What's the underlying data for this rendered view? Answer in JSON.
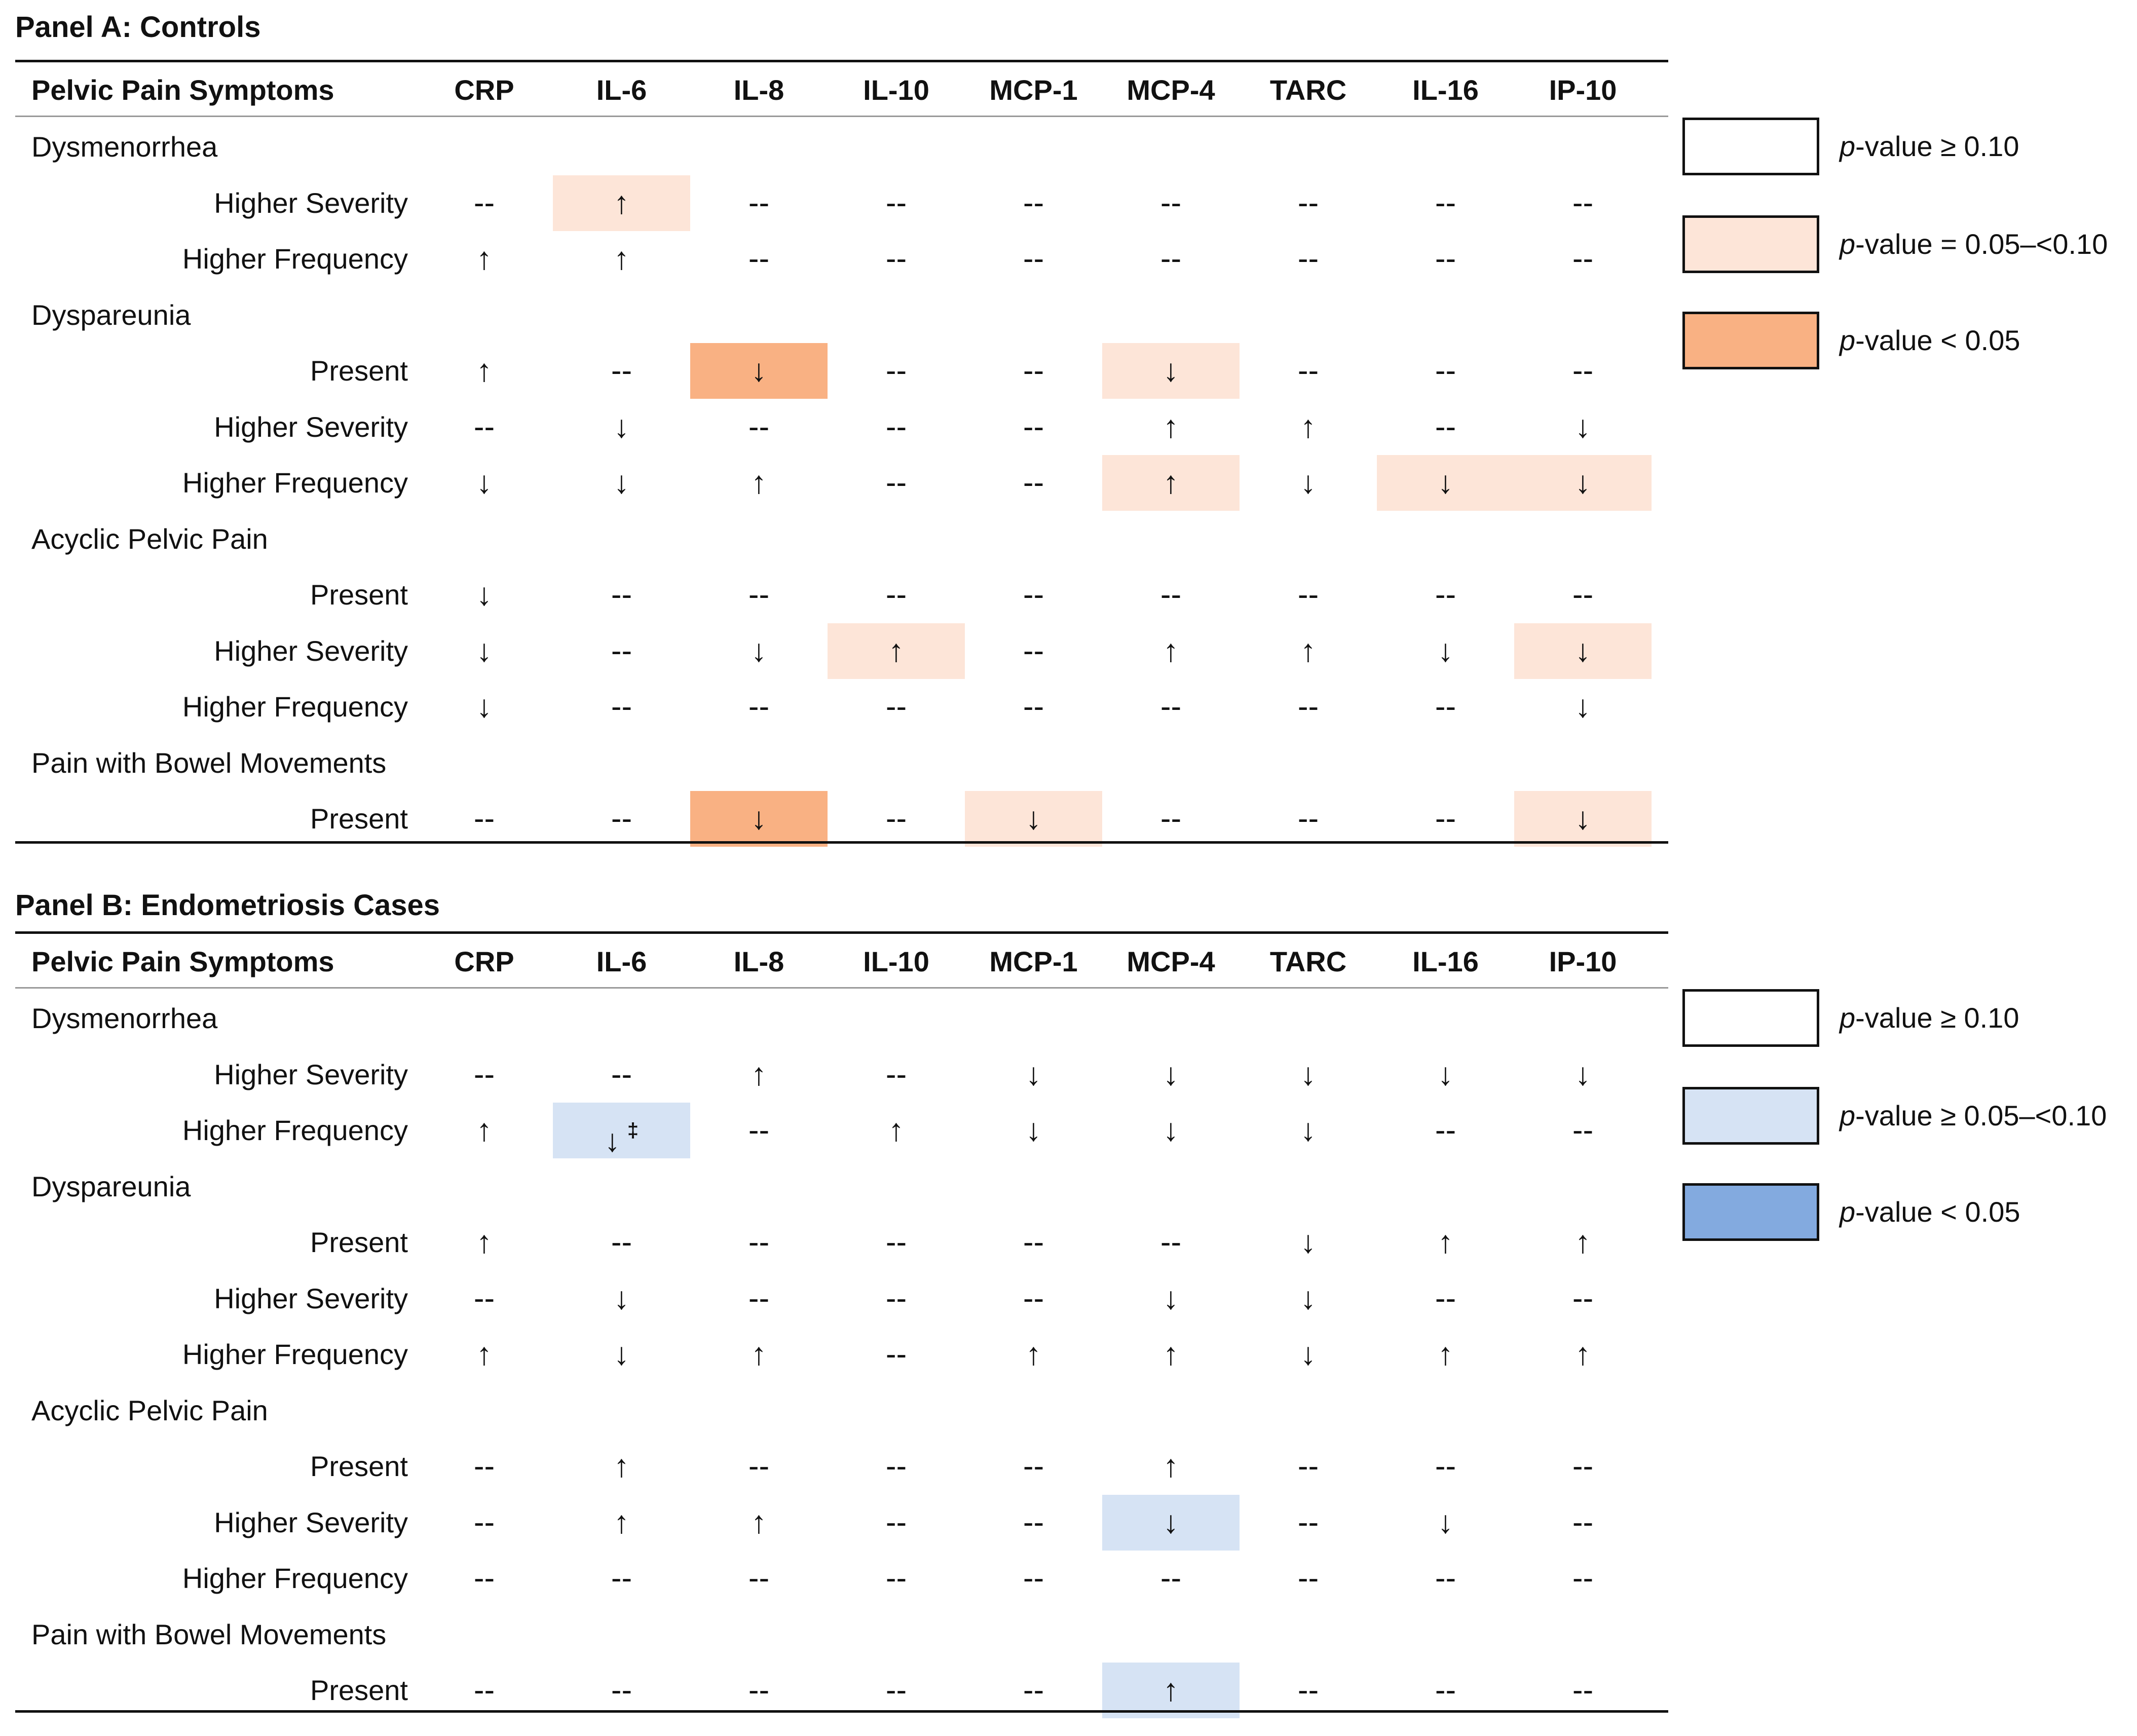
{
  "columns": [
    "Pelvic Pain Symptoms",
    "CRP",
    "IL-6",
    "IL-8",
    "IL-10",
    "MCP-1",
    "MCP-4",
    "TARC",
    "IL-16",
    "IP-10"
  ],
  "colors": {
    "none": "#ffffff",
    "light_orange": "#fde5d8",
    "dark_orange": "#f9b183",
    "light_blue": "#d6e3f4",
    "dark_blue": "#83aadf",
    "border": "#111111"
  },
  "panel_a": {
    "title": "Panel A: Controls",
    "rows": [
      {
        "label": "Dysmenorrhea",
        "group": true
      },
      {
        "label": "Higher Severity",
        "group": false,
        "cells": [
          {
            "v": "--"
          },
          {
            "v": "↑",
            "sig": "light"
          },
          {
            "v": "--"
          },
          {
            "v": "--"
          },
          {
            "v": "--"
          },
          {
            "v": "--"
          },
          {
            "v": "--"
          },
          {
            "v": "--"
          },
          {
            "v": "--"
          }
        ]
      },
      {
        "label": "Higher Frequency",
        "group": false,
        "cells": [
          {
            "v": "↑"
          },
          {
            "v": "↑"
          },
          {
            "v": "--"
          },
          {
            "v": "--"
          },
          {
            "v": "--"
          },
          {
            "v": "--"
          },
          {
            "v": "--"
          },
          {
            "v": "--"
          },
          {
            "v": "--"
          }
        ]
      },
      {
        "label": "Dyspareunia",
        "group": true
      },
      {
        "label": "Present",
        "group": false,
        "cells": [
          {
            "v": "↑"
          },
          {
            "v": "--"
          },
          {
            "v": "↓",
            "sig": "dark"
          },
          {
            "v": "--"
          },
          {
            "v": "--"
          },
          {
            "v": "↓",
            "sig": "light"
          },
          {
            "v": "--"
          },
          {
            "v": "--"
          },
          {
            "v": "--"
          }
        ]
      },
      {
        "label": "Higher Severity",
        "group": false,
        "cells": [
          {
            "v": "--"
          },
          {
            "v": "↓"
          },
          {
            "v": "--"
          },
          {
            "v": "--"
          },
          {
            "v": "--"
          },
          {
            "v": "↑"
          },
          {
            "v": "↑"
          },
          {
            "v": "--"
          },
          {
            "v": "↓"
          }
        ]
      },
      {
        "label": "Higher Frequency",
        "group": false,
        "cells": [
          {
            "v": "↓"
          },
          {
            "v": "↓"
          },
          {
            "v": "↑"
          },
          {
            "v": "--"
          },
          {
            "v": "--"
          },
          {
            "v": "↑",
            "sig": "light"
          },
          {
            "v": "↓"
          },
          {
            "v": "↓",
            "sig": "light"
          },
          {
            "v": "↓",
            "sig": "light"
          }
        ]
      },
      {
        "label": "Acyclic Pelvic Pain",
        "group": true
      },
      {
        "label": "Present",
        "group": false,
        "cells": [
          {
            "v": "↓"
          },
          {
            "v": "--"
          },
          {
            "v": "--"
          },
          {
            "v": "--"
          },
          {
            "v": "--"
          },
          {
            "v": "--"
          },
          {
            "v": "--"
          },
          {
            "v": "--"
          },
          {
            "v": "--"
          }
        ]
      },
      {
        "label": "Higher Severity",
        "group": false,
        "cells": [
          {
            "v": "↓"
          },
          {
            "v": "--"
          },
          {
            "v": "↓"
          },
          {
            "v": "↑",
            "sig": "light"
          },
          {
            "v": "--"
          },
          {
            "v": "↑"
          },
          {
            "v": "↑"
          },
          {
            "v": "↓"
          },
          {
            "v": "↓",
            "sig": "light"
          }
        ]
      },
      {
        "label": "Higher Frequency",
        "group": false,
        "cells": [
          {
            "v": "↓"
          },
          {
            "v": "--"
          },
          {
            "v": "--"
          },
          {
            "v": "--"
          },
          {
            "v": "--"
          },
          {
            "v": "--"
          },
          {
            "v": "--"
          },
          {
            "v": "--"
          },
          {
            "v": "↓"
          }
        ]
      },
      {
        "label": "Pain with Bowel Movements",
        "group": true
      },
      {
        "label": "Present",
        "group": false,
        "cells": [
          {
            "v": "--"
          },
          {
            "v": "--"
          },
          {
            "v": "↓",
            "sig": "dark"
          },
          {
            "v": "--"
          },
          {
            "v": "↓",
            "sig": "light"
          },
          {
            "v": "--"
          },
          {
            "v": "--"
          },
          {
            "v": "--"
          },
          {
            "v": "↓",
            "sig": "light"
          }
        ]
      }
    ],
    "legend": [
      {
        "prefix": "p",
        "text": "-value ≥ 0.10",
        "level": "none"
      },
      {
        "prefix": "p",
        "text": "-value = 0.05–<0.10",
        "level": "light"
      },
      {
        "prefix": "p",
        "text": "-value < 0.05",
        "level": "dark"
      }
    ]
  },
  "panel_b": {
    "title": "Panel B: Endometriosis Cases",
    "rows": [
      {
        "label": "Dysmenorrhea",
        "group": true
      },
      {
        "label": "Higher Severity",
        "group": false,
        "cells": [
          {
            "v": "--"
          },
          {
            "v": "--"
          },
          {
            "v": "↑"
          },
          {
            "v": "--"
          },
          {
            "v": "↓"
          },
          {
            "v": "↓"
          },
          {
            "v": "↓"
          },
          {
            "v": "↓"
          },
          {
            "v": "↓"
          }
        ]
      },
      {
        "label": "Higher Frequency",
        "group": false,
        "cells": [
          {
            "v": "↑"
          },
          {
            "v": "↓",
            "sig": "light",
            "mark": "‡"
          },
          {
            "v": "--"
          },
          {
            "v": "↑"
          },
          {
            "v": "↓"
          },
          {
            "v": "↓"
          },
          {
            "v": "↓"
          },
          {
            "v": "--"
          },
          {
            "v": "--"
          }
        ]
      },
      {
        "label": "Dyspareunia",
        "group": true
      },
      {
        "label": "Present",
        "group": false,
        "cells": [
          {
            "v": "↑"
          },
          {
            "v": "--"
          },
          {
            "v": "--"
          },
          {
            "v": "--"
          },
          {
            "v": "--"
          },
          {
            "v": "--"
          },
          {
            "v": "↓"
          },
          {
            "v": "↑"
          },
          {
            "v": "↑"
          }
        ]
      },
      {
        "label": "Higher Severity",
        "group": false,
        "cells": [
          {
            "v": "--"
          },
          {
            "v": "↓"
          },
          {
            "v": "--"
          },
          {
            "v": "--"
          },
          {
            "v": "--"
          },
          {
            "v": "↓"
          },
          {
            "v": "↓"
          },
          {
            "v": "--"
          },
          {
            "v": "--"
          }
        ]
      },
      {
        "label": "Higher Frequency",
        "group": false,
        "cells": [
          {
            "v": "↑"
          },
          {
            "v": "↓"
          },
          {
            "v": "↑"
          },
          {
            "v": "--"
          },
          {
            "v": "↑"
          },
          {
            "v": "↑"
          },
          {
            "v": "↓"
          },
          {
            "v": "↑"
          },
          {
            "v": "↑"
          }
        ]
      },
      {
        "label": "Acyclic Pelvic Pain",
        "group": true
      },
      {
        "label": "Present",
        "group": false,
        "cells": [
          {
            "v": "--"
          },
          {
            "v": "↑"
          },
          {
            "v": "--"
          },
          {
            "v": "--"
          },
          {
            "v": "--"
          },
          {
            "v": "↑"
          },
          {
            "v": "--"
          },
          {
            "v": "--"
          },
          {
            "v": "--"
          }
        ]
      },
      {
        "label": "Higher Severity",
        "group": false,
        "cells": [
          {
            "v": "--"
          },
          {
            "v": "↑"
          },
          {
            "v": "↑"
          },
          {
            "v": "--"
          },
          {
            "v": "--"
          },
          {
            "v": "↓",
            "sig": "light"
          },
          {
            "v": "--"
          },
          {
            "v": "↓"
          },
          {
            "v": "--"
          }
        ]
      },
      {
        "label": "Higher Frequency",
        "group": false,
        "cells": [
          {
            "v": "--"
          },
          {
            "v": "--"
          },
          {
            "v": "--"
          },
          {
            "v": "--"
          },
          {
            "v": "--"
          },
          {
            "v": "--"
          },
          {
            "v": "--"
          },
          {
            "v": "--"
          },
          {
            "v": "--"
          }
        ]
      },
      {
        "label": "Pain with Bowel Movements",
        "group": true
      },
      {
        "label": "Present",
        "group": false,
        "cells": [
          {
            "v": "--"
          },
          {
            "v": "--"
          },
          {
            "v": "--"
          },
          {
            "v": "--"
          },
          {
            "v": "--"
          },
          {
            "v": "↑",
            "sig": "light"
          },
          {
            "v": "--"
          },
          {
            "v": "--"
          },
          {
            "v": "--"
          }
        ]
      }
    ],
    "legend": [
      {
        "prefix": "p",
        "text": "-value ≥ 0.10",
        "level": "none"
      },
      {
        "prefix": "p",
        "text": "-value ≥ 0.05–<0.10",
        "level": "light"
      },
      {
        "prefix": "p",
        "text": "-value < 0.05",
        "level": "dark"
      }
    ]
  }
}
